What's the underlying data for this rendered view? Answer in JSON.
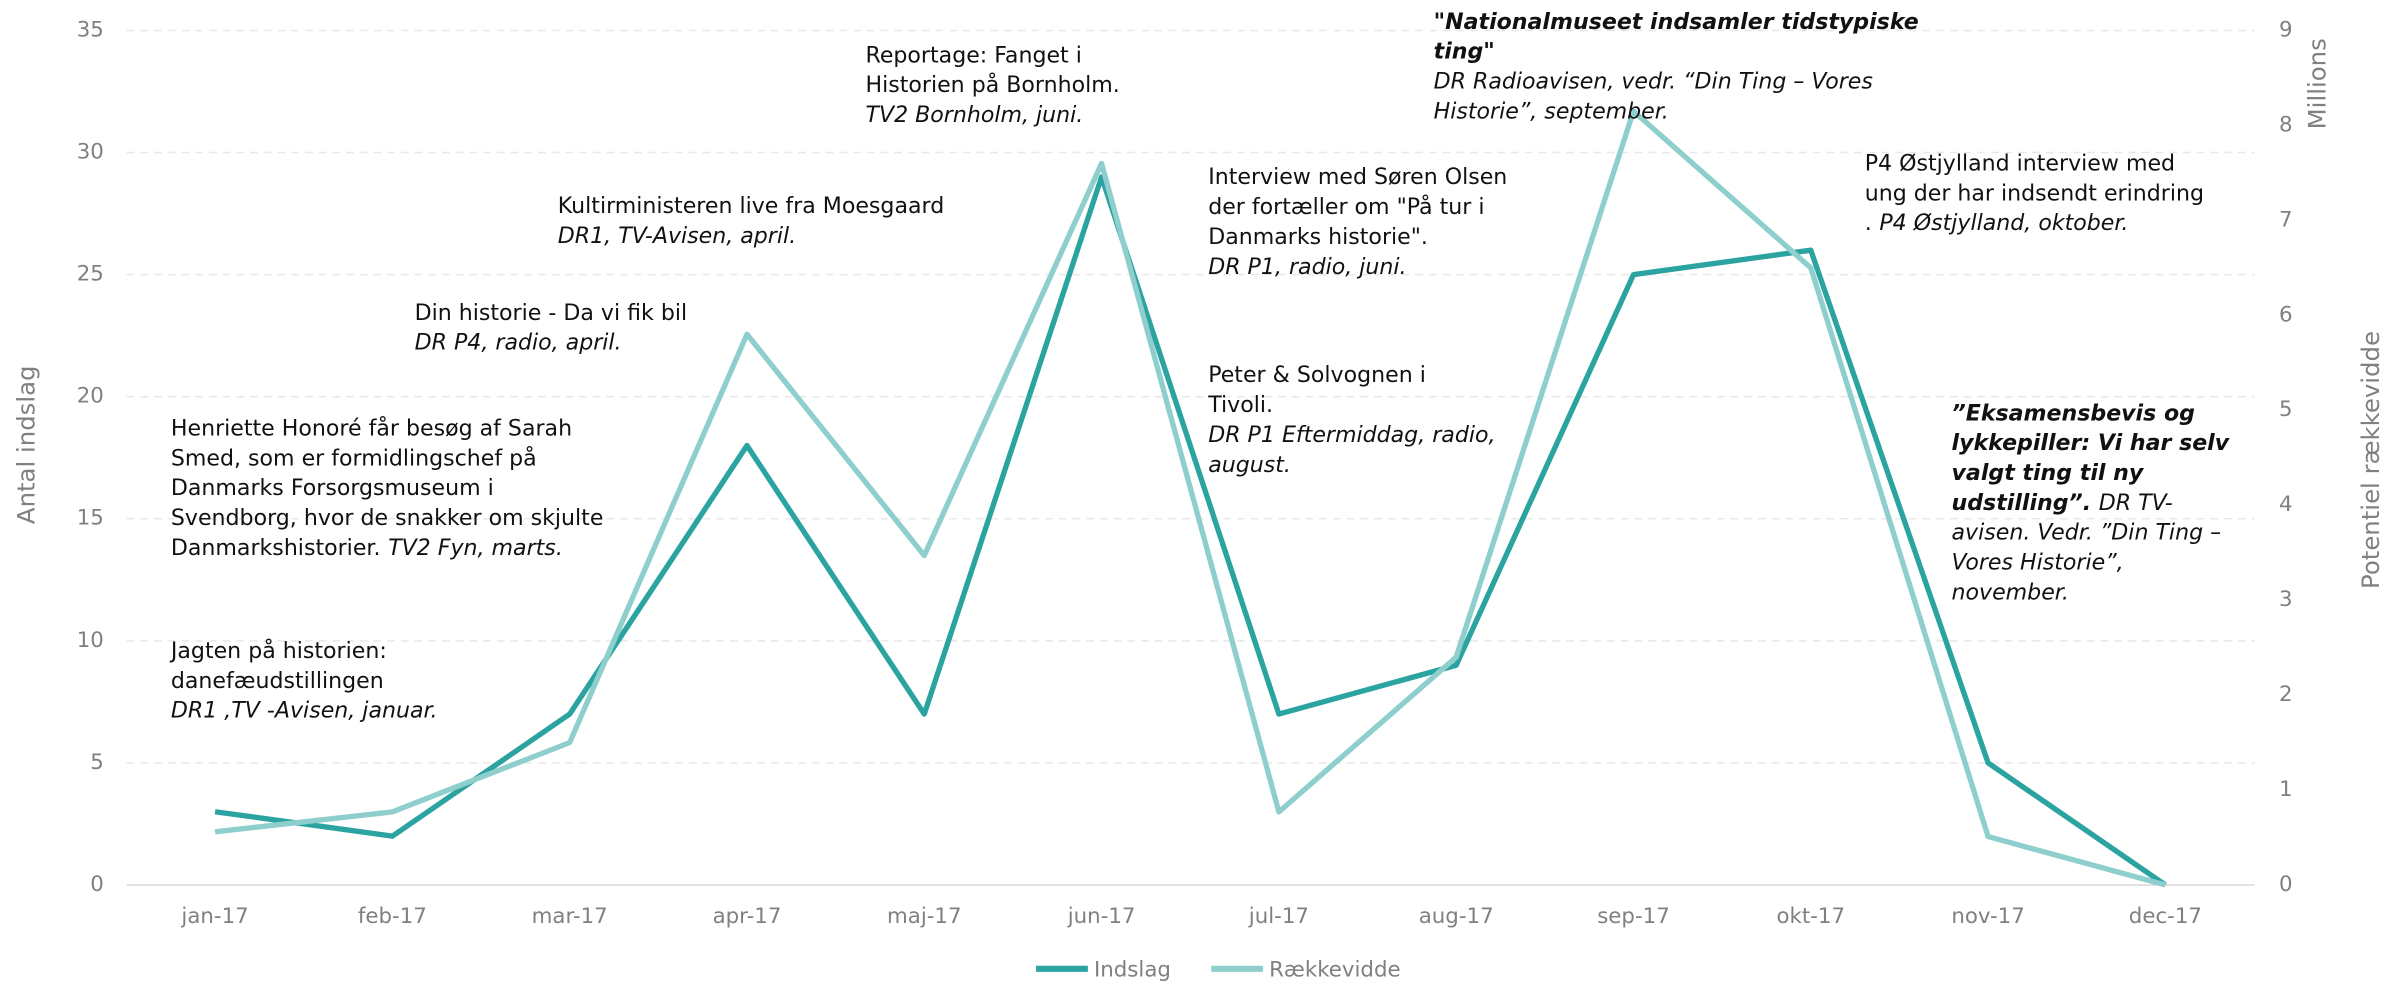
{
  "chart_data": {
    "type": "line",
    "categories": [
      "jan-17",
      "feb-17",
      "mar-17",
      "apr-17",
      "maj-17",
      "jun-17",
      "jul-17",
      "aug-17",
      "sep-17",
      "okt-17",
      "nov-17",
      "dec-17"
    ],
    "series": [
      {
        "name": "Indslag",
        "color": "#2ba3a0",
        "values": [
          3,
          2,
          7,
          18,
          7,
          29,
          7,
          9,
          25,
          26,
          5,
          0
        ]
      },
      {
        "name": "Rækkevidde",
        "color": "#8ecfcd",
        "axis": "y2",
        "values": [
          0.56,
          0.77,
          1.5,
          5.8,
          3.47,
          7.6,
          0.77,
          2.4,
          8.15,
          6.5,
          0.51,
          0
        ]
      }
    ],
    "ylabel": "Antal indslag",
    "y2label": "Potentiel rækkevidde",
    "y2unit": "Millions",
    "ylim": [
      0,
      35
    ],
    "yticks": [
      0,
      5,
      10,
      15,
      20,
      25,
      30,
      35
    ],
    "y2lim": [
      0,
      9
    ],
    "y2ticks": [
      0,
      1,
      2,
      3,
      4,
      5,
      6,
      7,
      8,
      9
    ],
    "grid": true,
    "legend": "bottom",
    "annotations": [
      {
        "lines": [
          [
            {
              "text": "Jagten på historien:",
              "style": "normal"
            }
          ],
          [
            {
              "text": "danefæudstillingen",
              "style": "normal"
            }
          ],
          [
            {
              "text": "DR1 ,TV -Avisen, januar.",
              "style": "italic"
            }
          ]
        ]
      },
      {
        "lines": [
          [
            {
              "text": "Henriette Honoré får besøg af Sarah",
              "style": "normal"
            }
          ],
          [
            {
              "text": "Smed, som er formidlingschef på",
              "style": "normal"
            }
          ],
          [
            {
              "text": "Danmarks Forsorgsmuseum i",
              "style": "normal"
            }
          ],
          [
            {
              "text": "Svendborg, hvor de snakker om skjulte",
              "style": "normal"
            }
          ],
          [
            {
              "text": "Danmarkshistorier.",
              "style": "normal"
            },
            {
              "text": "TV2 Fyn, marts.",
              "style": "italic"
            }
          ]
        ]
      },
      {
        "lines": [
          [
            {
              "text": "Din historie - Da vi fik bil",
              "style": "normal"
            }
          ],
          [
            {
              "text": "DR P4, radio, april.",
              "style": "italic"
            }
          ]
        ]
      },
      {
        "lines": [
          [
            {
              "text": "Kultirministeren live fra Moesgaard",
              "style": "normal"
            }
          ],
          [
            {
              "text": "DR1, TV-Avisen, april.",
              "style": "italic"
            }
          ]
        ]
      },
      {
        "lines": [
          [
            {
              "text": "Reportage: Fanget i",
              "style": "normal"
            }
          ],
          [
            {
              "text": "Historien på Bornholm.",
              "style": "normal"
            }
          ],
          [
            {
              "text": "TV2 Bornholm, juni.",
              "style": "italic"
            }
          ]
        ]
      },
      {
        "lines": [
          [
            {
              "text": "Interview med Søren Olsen",
              "style": "normal"
            }
          ],
          [
            {
              "text": "der fortæller om \"På tur i",
              "style": "normal"
            }
          ],
          [
            {
              "text": "Danmarks historie\".",
              "style": "normal"
            }
          ],
          [
            {
              "text": "DR P1, radio, juni.",
              "style": "italic"
            }
          ]
        ]
      },
      {
        "lines": [
          [
            {
              "text": "Peter & Solvognen i",
              "style": "normal"
            }
          ],
          [
            {
              "text": "Tivoli.",
              "style": "normal"
            }
          ],
          [
            {
              "text": "DR P1 Eftermiddag, radio,",
              "style": "italic"
            }
          ],
          [
            {
              "text": "august.",
              "style": "italic"
            }
          ]
        ]
      },
      {
        "lines": [
          [
            {
              "text": "\"Nationalmuseet indsamler tidstypiske",
              "style": "bold-italic"
            }
          ],
          [
            {
              "text": "ting\"",
              "style": "bold-italic"
            }
          ],
          [
            {
              "text": "DR Radioavisen, vedr. “Din Ting – Vores",
              "style": "italic"
            }
          ],
          [
            {
              "text": "Historie”, september.",
              "style": "italic"
            }
          ]
        ]
      },
      {
        "lines": [
          [
            {
              "text": "P4 Østjylland interview med",
              "style": "normal"
            }
          ],
          [
            {
              "text": "ung der har indsendt erindring",
              "style": "normal"
            }
          ],
          [
            {
              "text": ".",
              "style": "normal"
            },
            {
              "text": "P4 Østjylland, oktober.",
              "style": "italic"
            }
          ]
        ]
      },
      {
        "lines": [
          [
            {
              "text": "”Eksamensbevis og",
              "style": "bold-italic"
            }
          ],
          [
            {
              "text": "lykkepiller: Vi har selv",
              "style": "bold-italic"
            }
          ],
          [
            {
              "text": "valgt ting til ny",
              "style": "bold-italic"
            }
          ],
          [
            {
              "text": "udstilling”.",
              "style": "bold-italic"
            },
            {
              "text": "DR TV-",
              "style": "italic"
            }
          ],
          [
            {
              "text": "avisen. Vedr. ”Din Ting –",
              "style": "italic"
            }
          ],
          [
            {
              "text": "Vores Historie”,",
              "style": "italic"
            }
          ],
          [
            {
              "text": "november.",
              "style": "italic"
            }
          ]
        ]
      }
    ]
  }
}
